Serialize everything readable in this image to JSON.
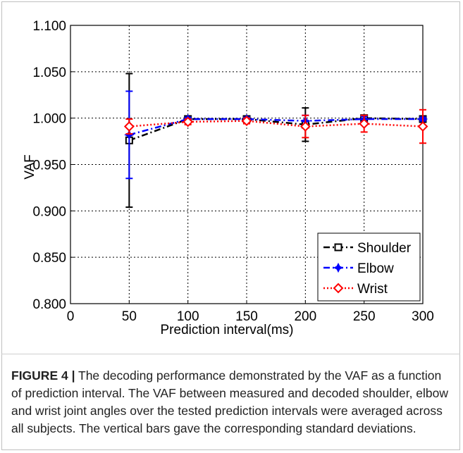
{
  "chart_data": {
    "type": "line",
    "xlabel": "Prediction interval(ms)",
    "ylabel": "VAF",
    "xlim": [
      0,
      300
    ],
    "ylim": [
      0.8,
      1.1
    ],
    "xticks": [
      "0",
      "50",
      "100",
      "150",
      "200",
      "250",
      "300"
    ],
    "yticks": [
      "0.800",
      "0.850",
      "0.900",
      "0.950",
      "1.000",
      "1.050",
      "1.100"
    ],
    "grid": true,
    "legend_position": "bottom-right",
    "x": [
      50,
      100,
      150,
      200,
      250,
      300
    ],
    "series": [
      {
        "name": "Shoulder",
        "color": "#000000",
        "marker": "square",
        "values": [
          0.976,
          0.999,
          0.999,
          0.993,
          1.0,
          0.999
        ],
        "errors": [
          0.072,
          0.002,
          0.002,
          0.018,
          0.003,
          0.002
        ]
      },
      {
        "name": "Elbow",
        "color": "#0000ff",
        "marker": "star",
        "values": [
          0.982,
          0.999,
          0.999,
          0.997,
          0.999,
          0.999
        ],
        "errors": [
          0.047,
          0.002,
          0.002,
          0.006,
          0.003,
          0.002
        ]
      },
      {
        "name": "Wrist",
        "color": "#ff0000",
        "marker": "diamond",
        "values": [
          0.991,
          0.996,
          0.997,
          0.991,
          0.994,
          0.991
        ],
        "errors": [
          0.008,
          0.003,
          0.003,
          0.012,
          0.009,
          0.018
        ]
      }
    ]
  },
  "caption": {
    "label": "FIGURE 4 |",
    "text": " The decoding performance demonstrated by the VAF as a function of prediction interval. The VAF between measured and decoded shoulder, elbow and wrist joint angles over the tested prediction intervals were averaged across all subjects. The vertical bars gave the corresponding standard deviations."
  }
}
